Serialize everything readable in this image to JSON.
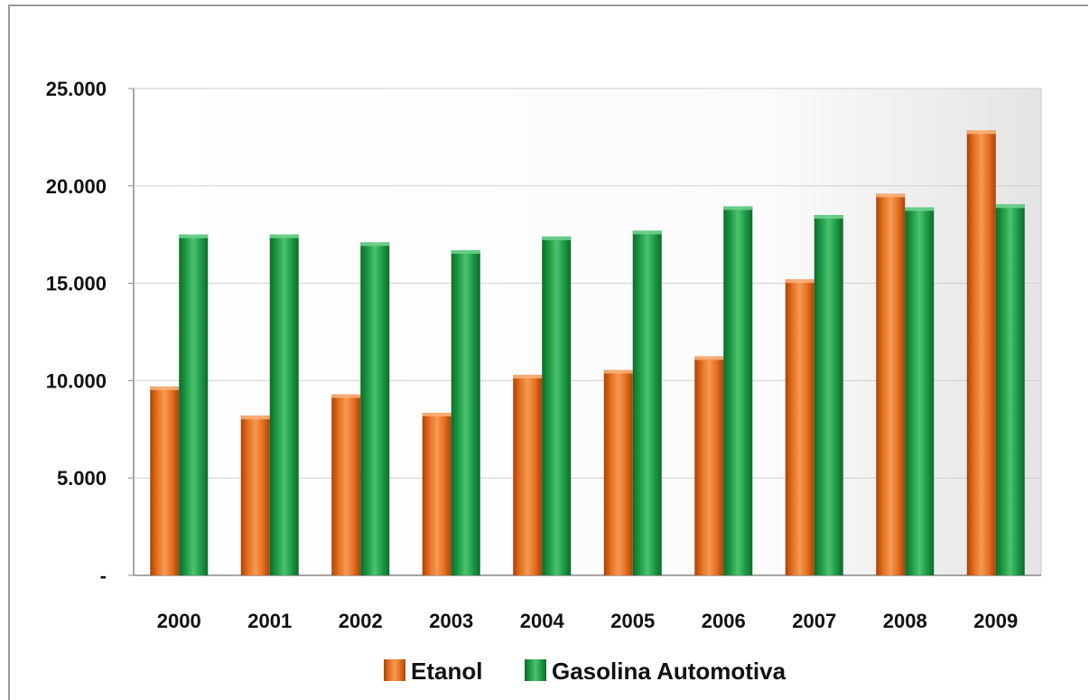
{
  "chart_data": {
    "type": "bar",
    "categories": [
      "2000",
      "2001",
      "2002",
      "2003",
      "2004",
      "2005",
      "2006",
      "2007",
      "2008",
      "2009"
    ],
    "series": [
      {
        "name": "Etanol",
        "color": "#e8701f",
        "values": [
          9700,
          8200,
          9300,
          8350,
          10300,
          10550,
          11250,
          15200,
          19600,
          22850
        ]
      },
      {
        "name": "Gasolina Automotiva",
        "color": "#1f9b45",
        "values": [
          17500,
          17500,
          17100,
          16700,
          17400,
          17700,
          18950,
          18500,
          18900,
          19050
        ]
      }
    ],
    "yticks": [
      "-",
      "5.000",
      "10.000",
      "15.000",
      "20.000",
      "25.000"
    ],
    "ylim": [
      0,
      25000
    ],
    "grid": true,
    "legend_position": "bottom"
  }
}
